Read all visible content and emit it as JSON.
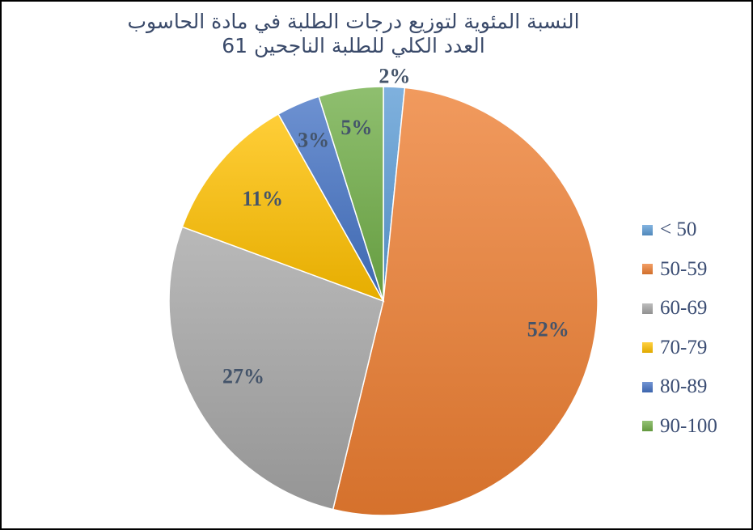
{
  "chart_data": {
    "type": "pie",
    "title_line1": "النسبة المئوية لتوزيع درجات الطلبة في مادة الحاسوب",
    "title_line2": "العدد الكلي للطلبة الناجحين 61",
    "categories": [
      "< 50",
      "50-59",
      "60-69",
      "70-79",
      "80-89",
      "90-100"
    ],
    "values": [
      1.6,
      52.5,
      27.0,
      11.3,
      3.3,
      4.9
    ],
    "labels": [
      "2%",
      "52%",
      "27%",
      "11%",
      "3%",
      "5%"
    ],
    "colors": [
      "#5b9bd5",
      "#ed7d31",
      "#a5a5a5",
      "#ffc000",
      "#4472c4",
      "#70ad47"
    ],
    "legend_position": "right",
    "start_angle_deg": 0,
    "direction": "clockwise"
  }
}
